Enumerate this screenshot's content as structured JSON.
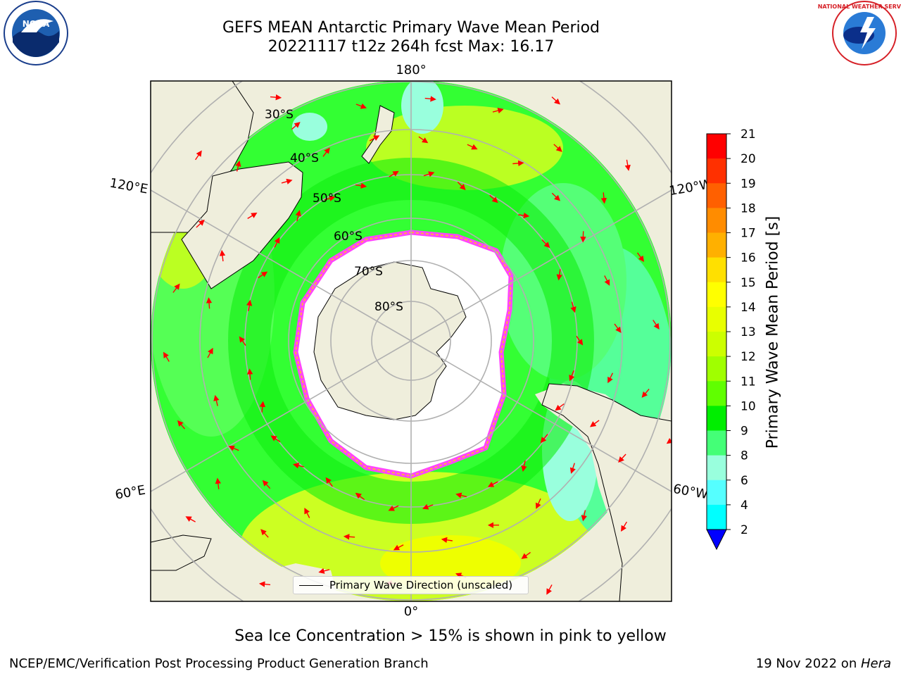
{
  "title": {
    "line1": "GEFS MEAN Antarctic Primary Wave Mean Period",
    "line2": "20221117 t12z 264h fcst   Max: 16.17"
  },
  "logos": {
    "left": "NOAA",
    "right": "NATIONAL WEATHER SERVICE"
  },
  "map": {
    "projection": "south-polar-stereographic",
    "longitude_labels": {
      "top": "180°",
      "bottom": "0°",
      "left_upper": "120°E",
      "left_lower": "60°E",
      "right_upper": "120°W",
      "right_lower": "60°W"
    },
    "latitude_labels": [
      "30°S",
      "40°S",
      "50°S",
      "60°S",
      "70°S",
      "80°S"
    ],
    "colors": {
      "land": "#efeedc",
      "ocean_low": "#00ff00",
      "ocean_mid": "#aaff00",
      "ice": "#ffffff",
      "ice_edge": "#ff44ff",
      "arrows": "#ff0000"
    }
  },
  "legend": {
    "label": "Primary Wave Direction (unscaled)"
  },
  "colorbar": {
    "label": "Primary Wave Mean Period [s]",
    "ticks": [
      "21",
      "20",
      "19",
      "18",
      "17",
      "16",
      "15",
      "14",
      "13",
      "12",
      "11",
      "10",
      "9",
      "8",
      "6",
      "4",
      "2"
    ],
    "colors": [
      "#ff0000",
      "#ff3000",
      "#ff6000",
      "#ff8c00",
      "#ffb000",
      "#ffe000",
      "#ffff00",
      "#e8ff00",
      "#ccff00",
      "#a0ff00",
      "#60ff00",
      "#00ee00",
      "#44ff77",
      "#99ffdd",
      "#55ffff",
      "#00ffff",
      "#00ddff",
      "#0077ff",
      "#0000ff"
    ]
  },
  "caption": "Sea Ice Concentration > 15% is shown in pink to yellow",
  "footer": {
    "left": "NCEP/EMC/Verification Post Processing Product Generation Branch",
    "right_prefix": "19 Nov 2022 on ",
    "right_machine": "Hera"
  }
}
